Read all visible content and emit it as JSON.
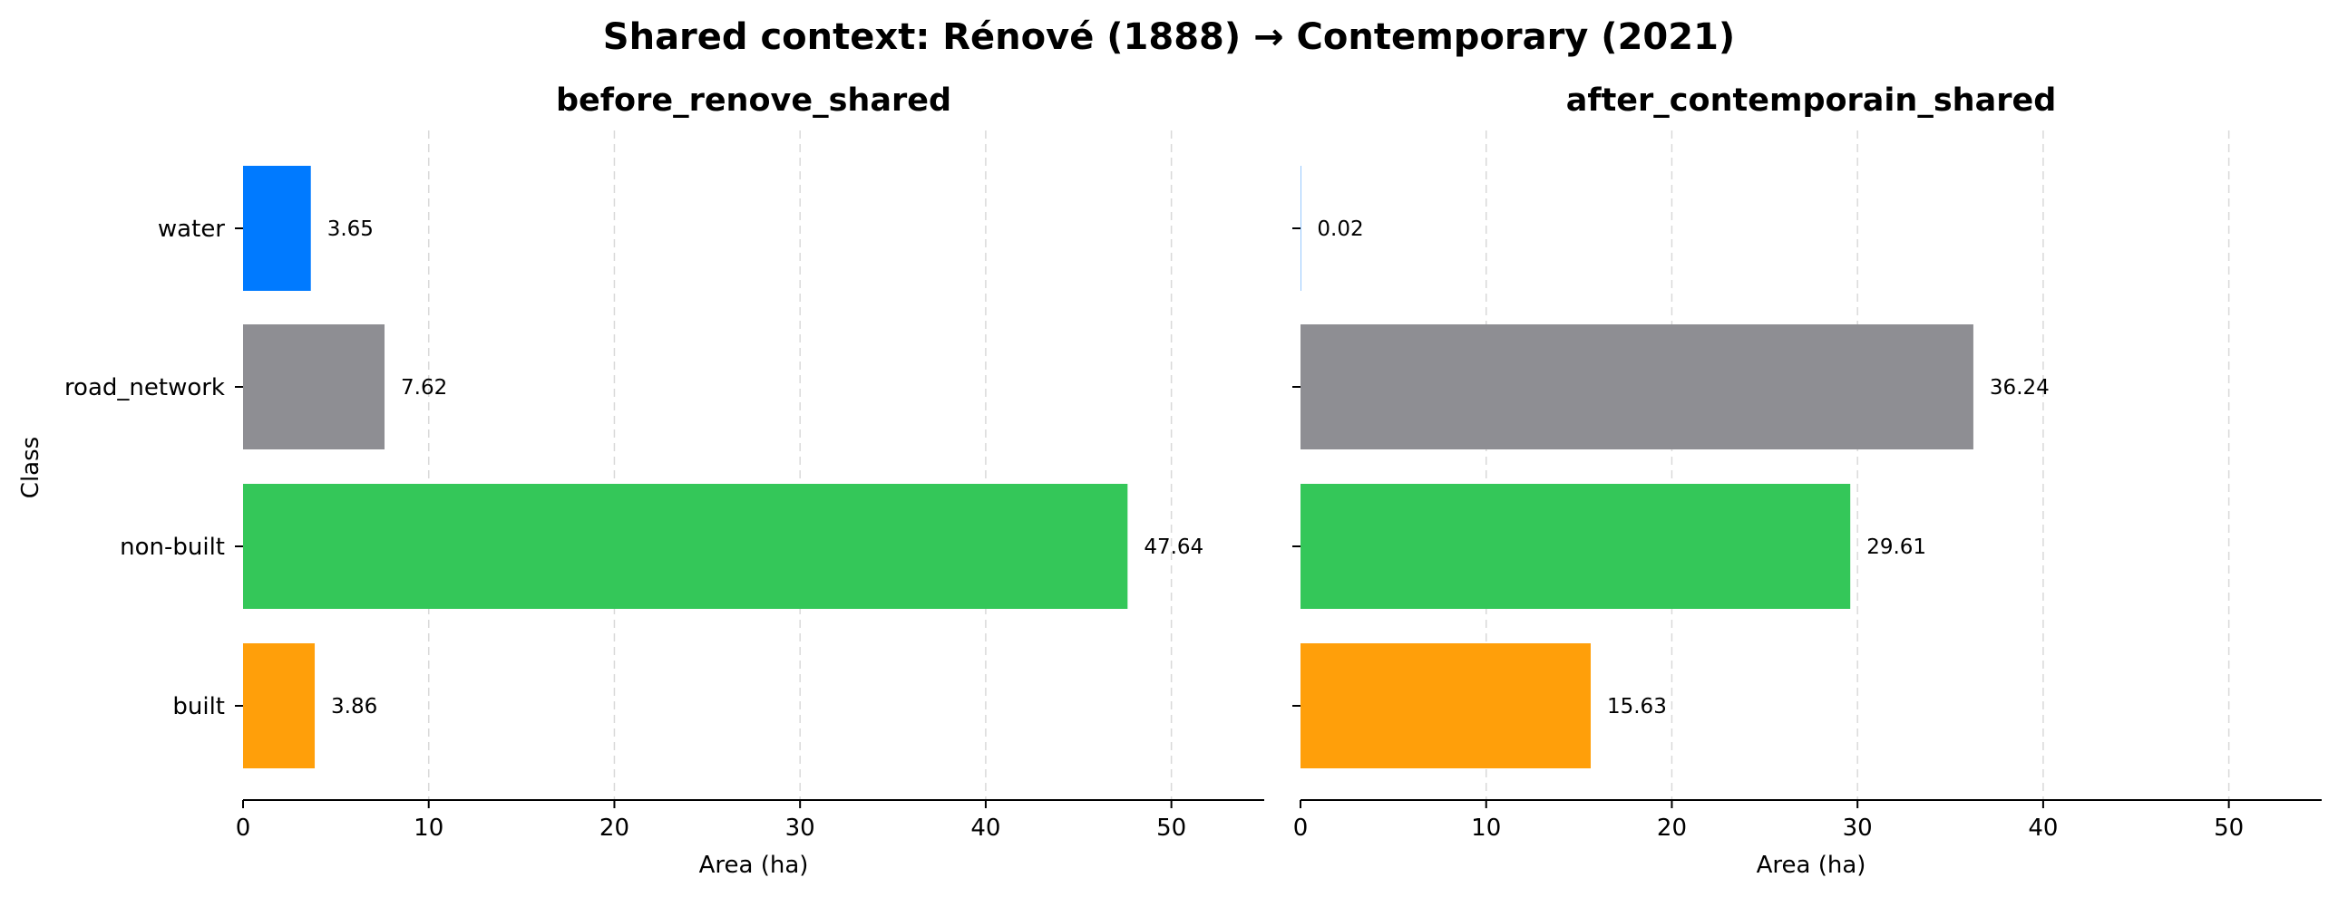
{
  "figure": {
    "title": "Shared context: Rénové (1888) → Contemporary (2021)"
  },
  "chart_data": [
    {
      "type": "bar",
      "orientation": "horizontal",
      "title": "before_renove_shared",
      "xlabel": "Area (ha)",
      "ylabel": "Class",
      "categories": [
        "water",
        "road_network",
        "non-built",
        "built"
      ],
      "values": [
        3.65,
        7.62,
        47.64,
        3.86
      ],
      "value_labels": [
        "3.65",
        "7.62",
        "47.64",
        "3.86"
      ],
      "colors": [
        "#007AFF",
        "#8E8E93",
        "#34C759",
        "#FF9F0A"
      ],
      "xlim": [
        0,
        55
      ],
      "xticks": [
        0,
        10,
        20,
        30,
        40,
        50
      ],
      "grid": "x-dashed"
    },
    {
      "type": "bar",
      "orientation": "horizontal",
      "title": "after_contemporain_shared",
      "xlabel": "Area (ha)",
      "ylabel": "",
      "categories": [
        "water",
        "road_network",
        "non-built",
        "built"
      ],
      "values": [
        0.02,
        36.24,
        29.61,
        15.63
      ],
      "value_labels": [
        "0.02",
        "36.24",
        "29.61",
        "15.63"
      ],
      "colors": [
        "#007AFF",
        "#8E8E93",
        "#34C759",
        "#FF9F0A"
      ],
      "xlim": [
        0,
        55
      ],
      "xticks": [
        0,
        10,
        20,
        30,
        40,
        50
      ],
      "grid": "x-dashed"
    }
  ]
}
